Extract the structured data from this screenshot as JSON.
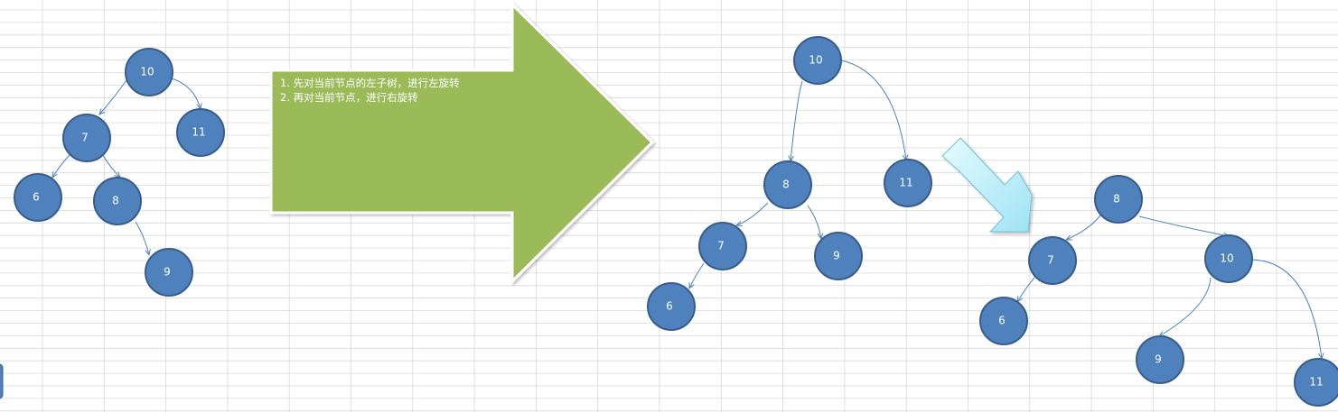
{
  "note": {
    "line1": "1. 先对当前节点的左子树，进行左旋转",
    "line2": "2. 再对当前节点，进行右旋转"
  },
  "trees": {
    "before": {
      "nodes": [
        "10",
        "7",
        "11",
        "6",
        "8",
        "9"
      ],
      "edges": [
        [
          "10",
          "7"
        ],
        [
          "10",
          "11"
        ],
        [
          "7",
          "6"
        ],
        [
          "7",
          "8"
        ],
        [
          "8",
          "9"
        ]
      ]
    },
    "after_left_rotation": {
      "nodes": [
        "10",
        "8",
        "11",
        "7",
        "9",
        "6"
      ],
      "edges": [
        [
          "10",
          "8"
        ],
        [
          "10",
          "11"
        ],
        [
          "8",
          "7"
        ],
        [
          "8",
          "9"
        ],
        [
          "7",
          "6"
        ]
      ]
    },
    "after_right_rotation": {
      "nodes": [
        "8",
        "7",
        "10",
        "6",
        "9",
        "11"
      ],
      "edges": [
        [
          "8",
          "7"
        ],
        [
          "8",
          "10"
        ],
        [
          "7",
          "6"
        ],
        [
          "10",
          "9"
        ],
        [
          "10",
          "11"
        ]
      ]
    }
  },
  "colors": {
    "node_fill": "#4f81bd",
    "node_stroke": "#385d8a",
    "edge": "#4f81bd",
    "arrow_green": "#9bbb59",
    "arrow_cyan": "#b7ecf7",
    "grid": "#d9d9d9"
  }
}
